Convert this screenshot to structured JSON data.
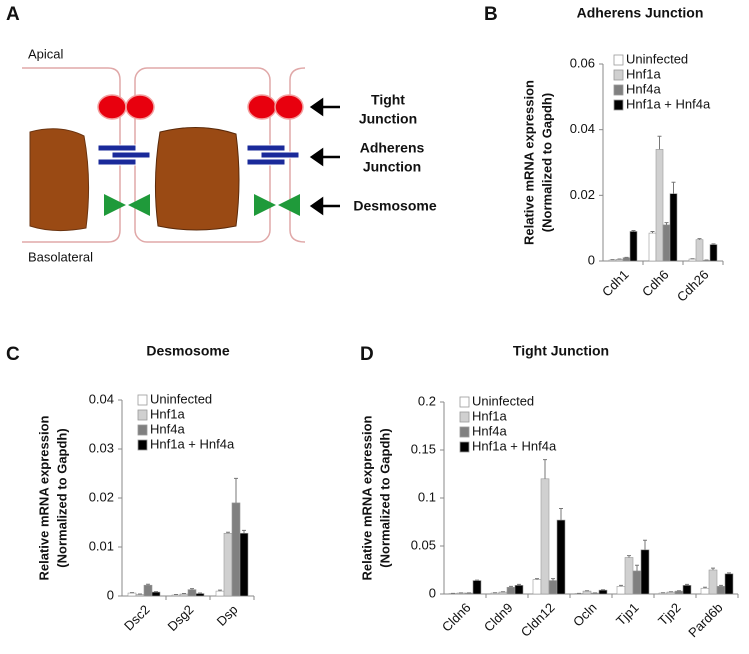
{
  "diagram": {
    "panel": "A",
    "apical": "Apical",
    "basolateral": "Basolateral",
    "tight_label": [
      "Tight",
      "Junction"
    ],
    "adherens_label": [
      "Adherens",
      "Junction"
    ],
    "desmosome_label": "Desmosome"
  },
  "chart_data": [
    {
      "type": "bar",
      "panel": "B",
      "title": "Adherens Junction",
      "ylabel": [
        "Relative mRNA expression",
        "(Normalized to Gapdh)"
      ],
      "categories": [
        "Cdh1",
        "Cdh6",
        "Cdh26"
      ],
      "ylim": [
        0,
        0.06
      ],
      "yticks": [
        0,
        0.02,
        0.04,
        0.06
      ],
      "series": [
        {
          "name": "Uninfected",
          "color": "#ffffff",
          "values": [
            0.0003,
            0.0085,
            0.0006
          ],
          "errors": [
            0.0001,
            0.0005,
            0.0001
          ]
        },
        {
          "name": "Hnf1a",
          "color": "#d0d0d0",
          "values": [
            0.0005,
            0.034,
            0.0065
          ],
          "errors": [
            0.0001,
            0.004,
            0.0003
          ]
        },
        {
          "name": "Hnf4a",
          "color": "#808080",
          "values": [
            0.001,
            0.011,
            0.0002
          ],
          "errors": [
            0.0001,
            0.0007,
            0.0001
          ]
        },
        {
          "name": "Hnf1a + Hnf4a",
          "color": "#000000",
          "values": [
            0.009,
            0.0205,
            0.005
          ],
          "errors": [
            0.0003,
            0.0035,
            0.0002
          ]
        }
      ]
    },
    {
      "type": "bar",
      "panel": "C",
      "title": "Desmosome",
      "ylabel": [
        "Relative mRNA expression",
        "(Normalized to Gapdh)"
      ],
      "categories": [
        "Dsc2",
        "Dsg2",
        "Dsp"
      ],
      "ylim": [
        0,
        0.04
      ],
      "yticks": [
        0,
        0.01,
        0.02,
        0.03,
        0.04
      ],
      "series": [
        {
          "name": "Uninfected",
          "color": "#ffffff",
          "values": [
            0.0006,
            0.0002,
            0.001
          ],
          "errors": [
            0.0001,
            0.0001,
            0.0002
          ]
        },
        {
          "name": "Hnf1a",
          "color": "#d0d0d0",
          "values": [
            0.0003,
            0.0004,
            0.0128
          ],
          "errors": [
            0.0001,
            0.0001,
            0.0002
          ]
        },
        {
          "name": "Hnf4a",
          "color": "#808080",
          "values": [
            0.0022,
            0.0013,
            0.019
          ],
          "errors": [
            0.0002,
            0.0002,
            0.005
          ]
        },
        {
          "name": "Hnf1a + Hnf4a",
          "color": "#000000",
          "values": [
            0.0008,
            0.0005,
            0.0128
          ],
          "errors": [
            0.0001,
            0.0001,
            0.0006
          ]
        }
      ]
    },
    {
      "type": "bar",
      "panel": "D",
      "title": "Tight Junction",
      "ylabel": [
        "Relative mRNA expression",
        "(Normalized to Gapdh)"
      ],
      "categories": [
        "Cldn6",
        "Cldn9",
        "Cldn12",
        "Ocln",
        "Tjp1",
        "Tjp2",
        "Pard6b"
      ],
      "ylim": [
        0,
        0.2
      ],
      "yticks": [
        0,
        0.05,
        0.1,
        0.15,
        0.2
      ],
      "series": [
        {
          "name": "Uninfected",
          "color": "#ffffff",
          "values": [
            0.0005,
            0.001,
            0.015,
            0.0005,
            0.008,
            0.001,
            0.006
          ],
          "errors": [
            0.0002,
            0.0003,
            0.001,
            0.0002,
            0.001,
            0.0003,
            0.001
          ]
        },
        {
          "name": "Hnf1a",
          "color": "#d0d0d0",
          "values": [
            0.001,
            0.002,
            0.12,
            0.003,
            0.038,
            0.002,
            0.025
          ],
          "errors": [
            0.0002,
            0.0003,
            0.02,
            0.0004,
            0.002,
            0.0003,
            0.002
          ]
        },
        {
          "name": "Hnf4a",
          "color": "#808080",
          "values": [
            0.001,
            0.007,
            0.014,
            0.001,
            0.024,
            0.003,
            0.008
          ],
          "errors": [
            0.0002,
            0.001,
            0.002,
            0.0002,
            0.006,
            0.0004,
            0.001
          ]
        },
        {
          "name": "Hnf1a + Hnf4a",
          "color": "#000000",
          "values": [
            0.014,
            0.009,
            0.077,
            0.004,
            0.046,
            0.009,
            0.021
          ],
          "errors": [
            0.0005,
            0.001,
            0.012,
            0.0004,
            0.01,
            0.001,
            0.001
          ]
        }
      ]
    }
  ]
}
